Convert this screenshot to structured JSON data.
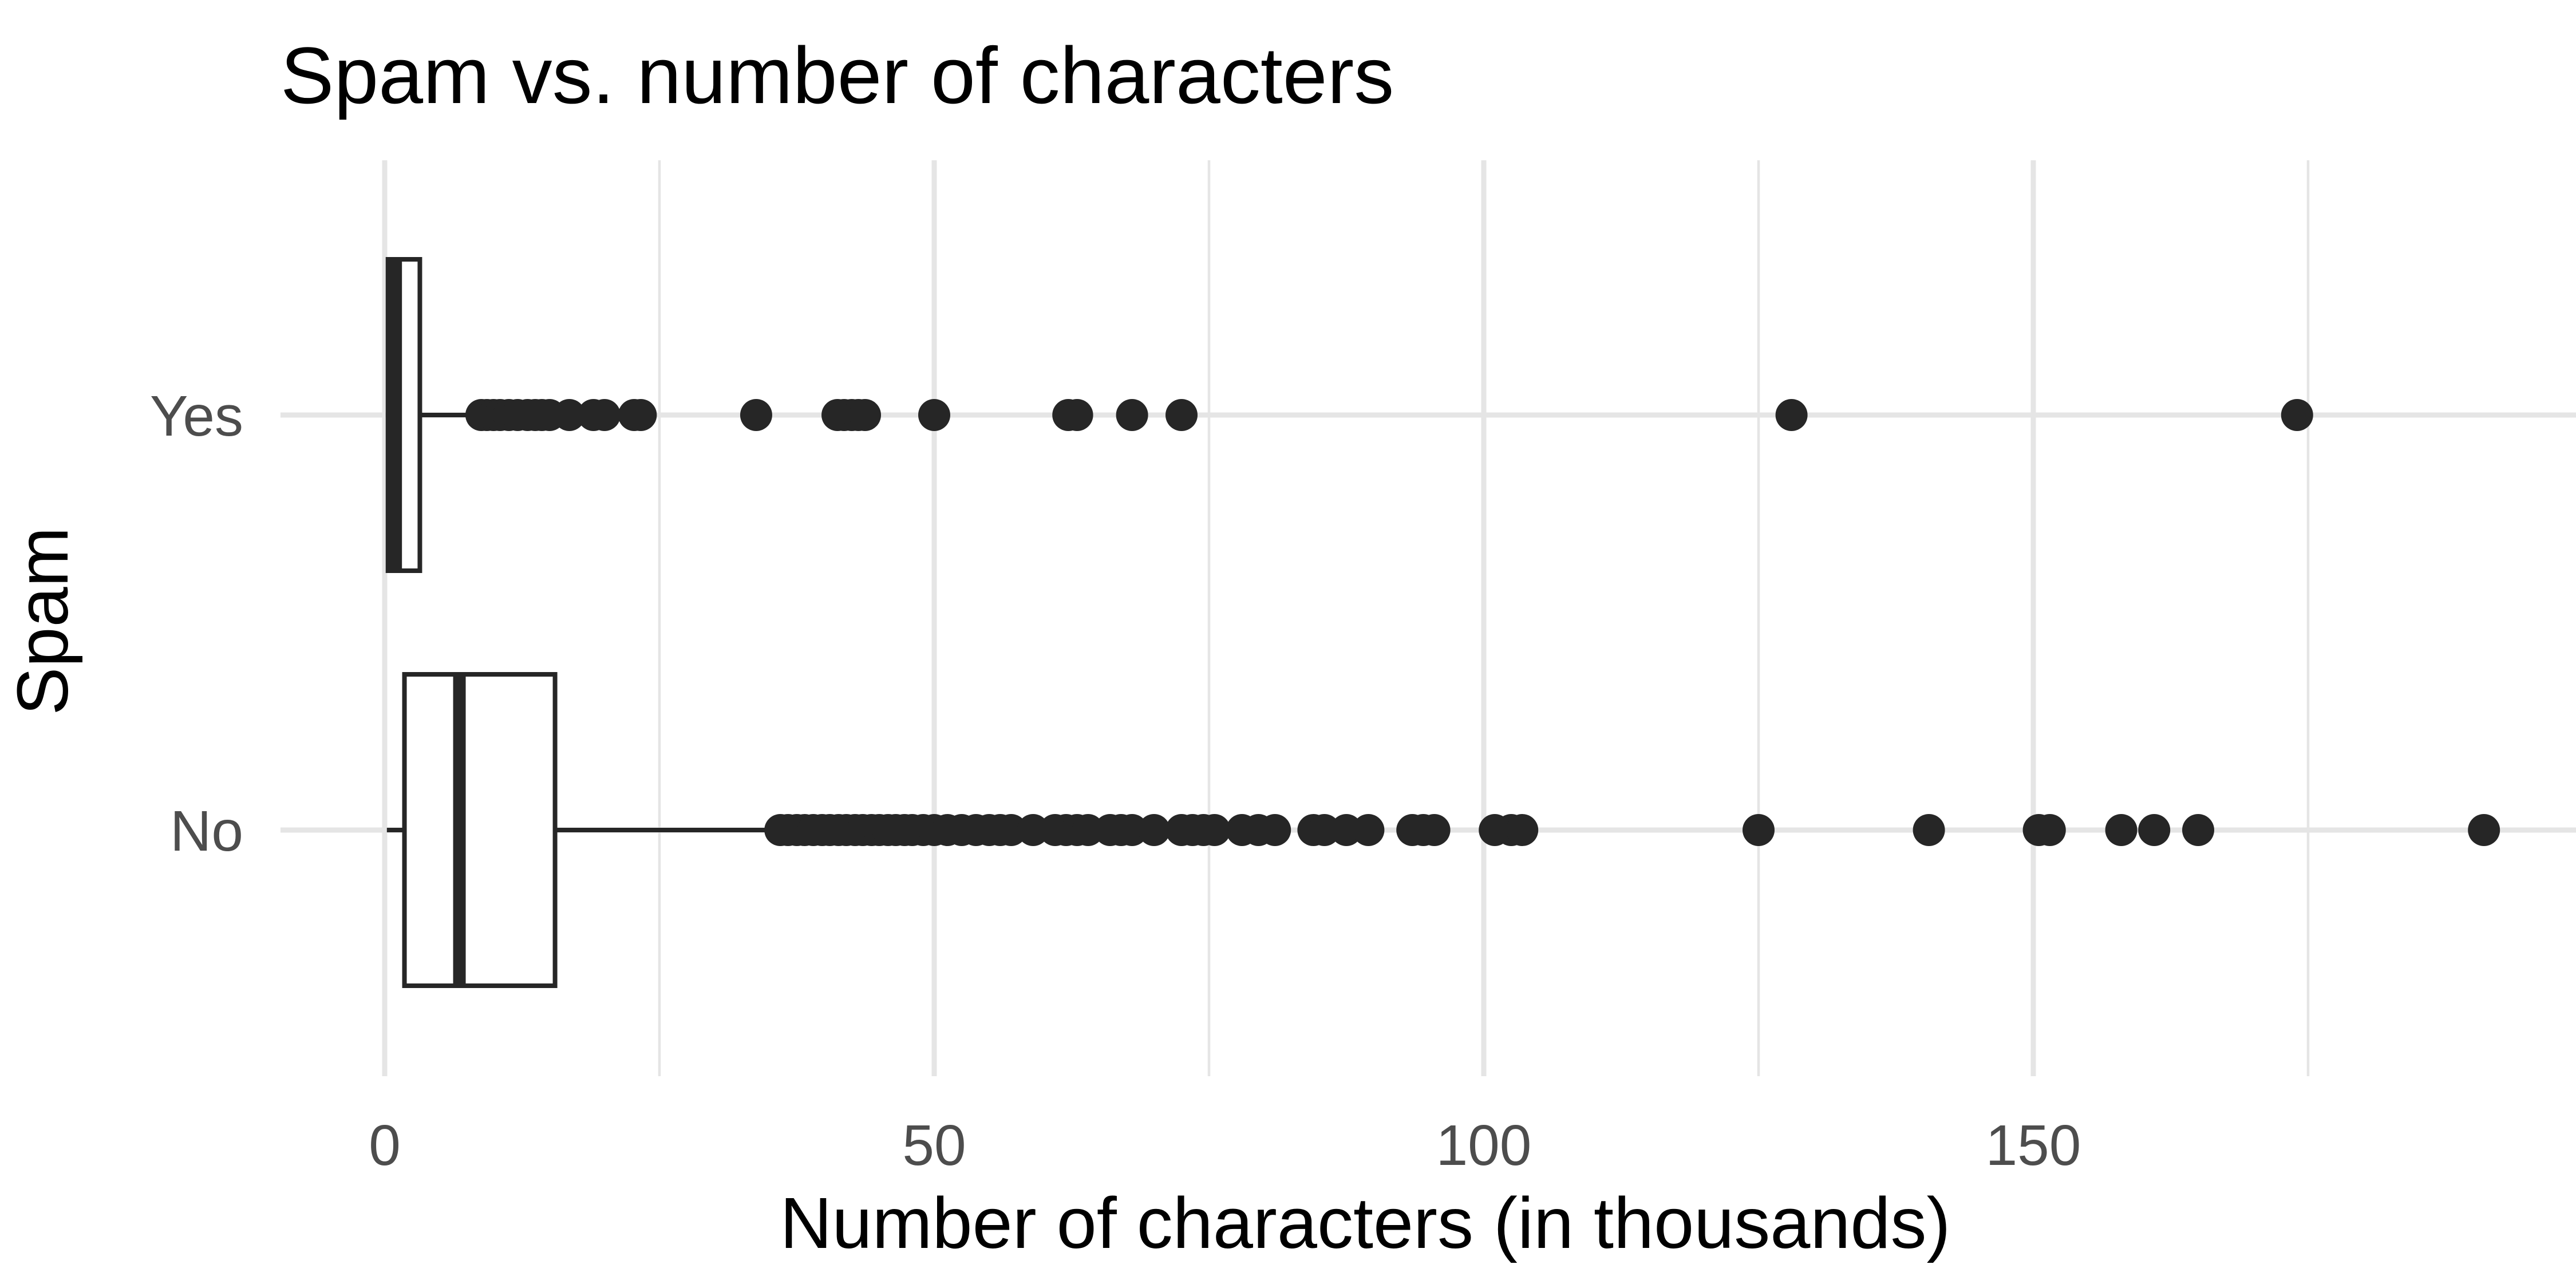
{
  "chart_data": {
    "type": "boxplot",
    "orientation": "horizontal",
    "title": "Spam vs. number of characters",
    "xlabel": "Number of characters (in thousands)",
    "ylabel": "Spam",
    "xlim": [
      -9.5,
      195
    ],
    "x_ticks": [
      0,
      50,
      100,
      150
    ],
    "x_tick_labels": [
      "0",
      "50",
      "100",
      "150"
    ],
    "x_minor_ticks": [
      25,
      75,
      125,
      175
    ],
    "categories": [
      "Yes",
      "No"
    ],
    "grid": true,
    "colors": {
      "box_fill": "#ffffff",
      "box_stroke": "#262626",
      "outlier": "#262626",
      "grid": "#e5e5e5"
    },
    "boxes": [
      {
        "category": "Yes",
        "whisker_low": 0.1,
        "q1": 0.3,
        "median": 1.0,
        "q3": 3.2,
        "whisker_high": 8.5,
        "outliers": [
          8.8,
          9.3,
          9.9,
          10.5,
          11.3,
          12.1,
          13.0,
          13.7,
          14.3,
          15.0,
          16.8,
          19.0,
          20.0,
          22.7,
          23.3,
          33.8,
          41.2,
          41.8,
          42.5,
          43.1,
          43.7,
          50.0,
          62.2,
          63.0,
          68.0,
          72.5,
          128.0,
          174.0
        ]
      },
      {
        "category": "No",
        "whisker_low": 0.2,
        "q1": 1.8,
        "median": 6.8,
        "q3": 15.5,
        "whisker_high": 36.0,
        "outliers": [
          36.0,
          36.7,
          37.5,
          38.2,
          39.0,
          39.8,
          40.5,
          41.3,
          42.0,
          42.8,
          43.5,
          44.3,
          45.0,
          45.8,
          46.5,
          47.3,
          48.0,
          49.0,
          50.0,
          51.2,
          52.5,
          53.8,
          55.0,
          56.0,
          57.0,
          59.0,
          61.0,
          62.0,
          63.0,
          64.0,
          66.0,
          67.0,
          68.0,
          70.0,
          72.5,
          73.5,
          74.5,
          75.5,
          78.0,
          79.5,
          81.0,
          84.5,
          85.5,
          87.5,
          89.5,
          93.5,
          94.5,
          95.5,
          101.0,
          102.5,
          103.5,
          125.0,
          140.5,
          150.5,
          151.5,
          158.0,
          161.0,
          165.0,
          191.0
        ]
      }
    ]
  }
}
